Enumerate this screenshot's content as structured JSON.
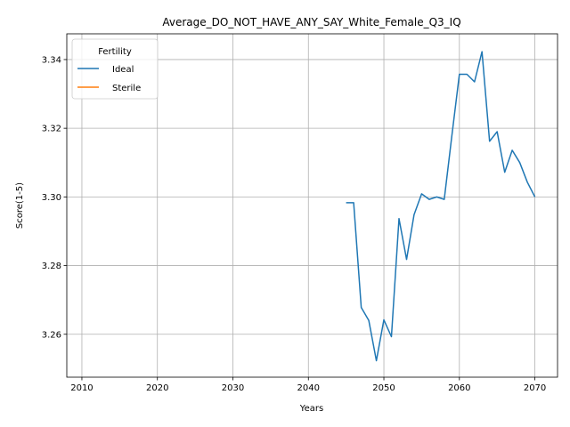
{
  "chart_data": {
    "type": "line",
    "title": "Average_DO_NOT_HAVE_ANY_SAY_White_Female_Q3_IQ",
    "xlabel": "Years",
    "ylabel": "Score(1-5)",
    "xlim": [
      2008,
      2073
    ],
    "ylim": [
      3.2475,
      3.3475
    ],
    "xticks": [
      2010,
      2020,
      2030,
      2040,
      2050,
      2060,
      2070
    ],
    "yticks": [
      3.26,
      3.28,
      3.3,
      3.32,
      3.34
    ],
    "xtick_labels": [
      "2010",
      "2020",
      "2030",
      "2040",
      "2050",
      "2060",
      "2070"
    ],
    "ytick_labels": [
      "3.26",
      "3.28",
      "3.30",
      "3.32",
      "3.34"
    ],
    "grid": true,
    "legend": {
      "title": "Fertility",
      "position": "top-left"
    },
    "series": [
      {
        "name": "Ideal",
        "color": "#1f77b4",
        "x": [
          2045,
          2046,
          2047,
          2048,
          2049,
          2050,
          2051,
          2052,
          2053,
          2054,
          2055,
          2056,
          2057,
          2058,
          2059,
          2060,
          2061,
          2062,
          2063,
          2064,
          2065,
          2066,
          2067,
          2068,
          2069,
          2070
        ],
        "y": [
          3.2983,
          3.2983,
          3.2678,
          3.264,
          3.2523,
          3.2642,
          3.2593,
          3.2937,
          3.2818,
          3.2948,
          3.3009,
          3.2993,
          3.3,
          3.2993,
          3.3177,
          3.3357,
          3.3357,
          3.3335,
          3.3423,
          3.3162,
          3.319,
          3.3072,
          3.3136,
          3.31,
          3.3043,
          3.3
        ]
      },
      {
        "name": "Sterile",
        "color": "#ff7f0e",
        "x": [],
        "y": []
      }
    ]
  }
}
